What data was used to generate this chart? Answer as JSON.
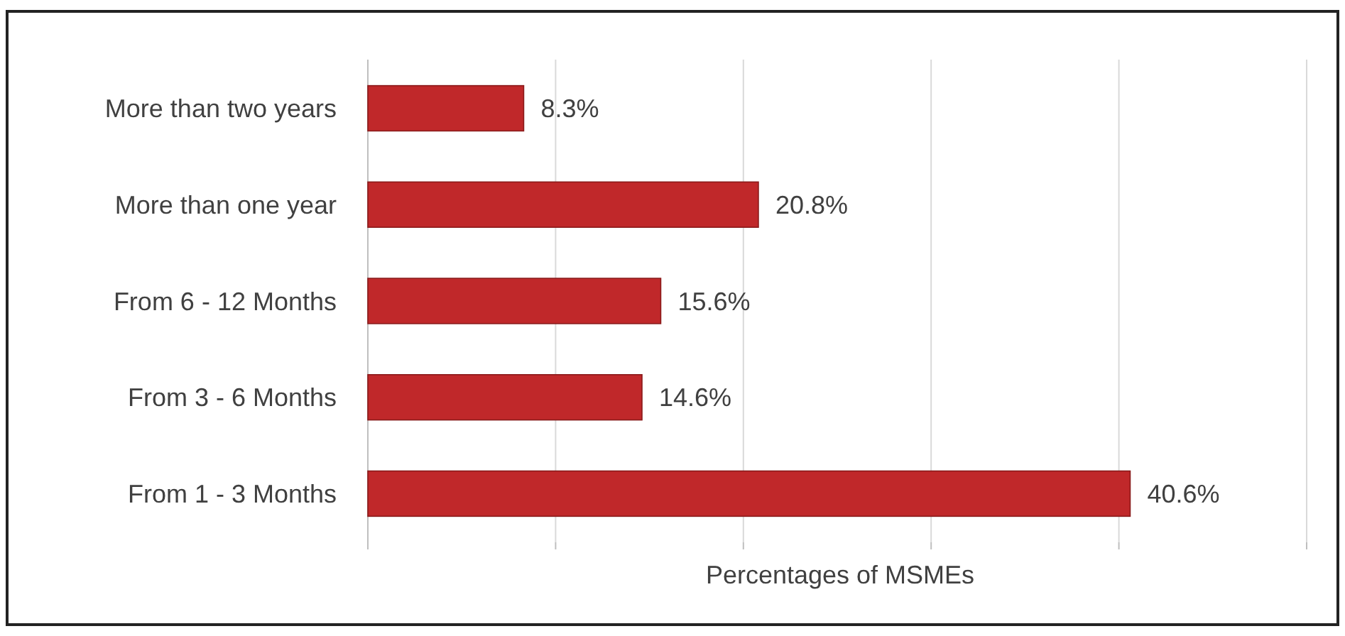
{
  "chart_data": {
    "type": "bar",
    "orientation": "horizontal",
    "xlabel": "Percentages of MSMEs",
    "categories": [
      "More than two years",
      "More than one year",
      "From 6 - 12 Months",
      "From 3 - 6 Months",
      "From 1 - 3 Months"
    ],
    "values": [
      8.3,
      20.8,
      15.6,
      14.6,
      40.6
    ],
    "value_labels": [
      "8.3%",
      "20.8%",
      "15.6%",
      "14.6%",
      "40.6%"
    ],
    "color": "#c0282a",
    "xlim": [
      0,
      50
    ],
    "xticks": [
      {
        "value": 0,
        "label": null
      },
      {
        "value": 10,
        "label": null
      },
      {
        "value": 20,
        "label": null
      },
      {
        "value": 30,
        "label": null
      },
      {
        "value": 40,
        "label": null
      },
      {
        "value": 50,
        "label": null
      }
    ],
    "grid": "x",
    "tick_labels": "y"
  }
}
